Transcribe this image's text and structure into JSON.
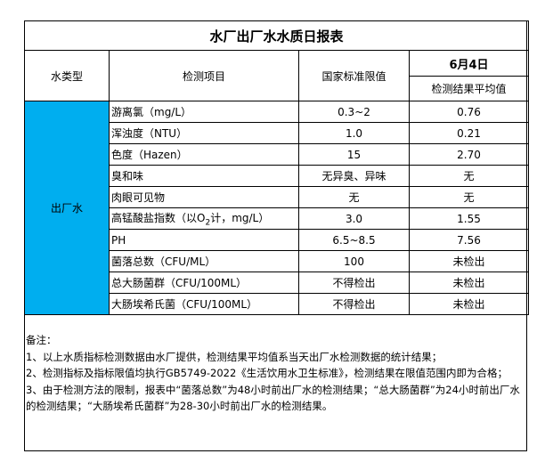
{
  "title": "水厂出厂水水质日报表",
  "headers": {
    "water_type": "水类型",
    "item": "检测项目",
    "standard": "国家标准限值",
    "date": "6月4日",
    "result": "检测结果平均值"
  },
  "water_type_value": "出厂水",
  "rows": [
    {
      "item": "游离氯（mg/L）",
      "standard": "0.3~2",
      "result": "0.76"
    },
    {
      "item": "浑浊度（NTU）",
      "standard": "1.0",
      "result": "0.21"
    },
    {
      "item": "色度（Hazen）",
      "standard": "15",
      "result": "2.70"
    },
    {
      "item": "臭和味",
      "standard": "无异臭、异味",
      "result": "无"
    },
    {
      "item": "肉眼可见物",
      "standard": "无",
      "result": "无"
    },
    {
      "item_pre": "高锰酸盐指数（以O",
      "item_sub": "2",
      "item_post": "计，mg/L）",
      "standard": "3.0",
      "result": "1.55"
    },
    {
      "item": "PH",
      "standard": "6.5~8.5",
      "result": "7.56"
    },
    {
      "item": "菌落总数（CFU/ML）",
      "standard": "100",
      "result": "未检出"
    },
    {
      "item": "总大肠菌群（CFU/100ML）",
      "standard": "不得检出",
      "result": "未检出"
    },
    {
      "item": "大肠埃希氏菌（CFU/100ML）",
      "standard": "不得检出",
      "result": "未检出"
    }
  ],
  "notes": {
    "heading": "备注：",
    "n1": "1、以上水质指标检测数据由水厂提供，检测结果平均值系当天出厂水检测数据的统计结果；",
    "n2": "2、检测指标及指标限值均执行GB5749-2022《生活饮用水卫生标准》，检测结果在限值范围内即为合格；",
    "n3": "3、由于检测方法的限制，报表中“菌落总数”为48小时前出厂水的检测结果；“总大肠菌群”为24小时前出厂水的检测结果；“大肠埃希氏菌群”为28-30小时前出厂水的检测结果。"
  },
  "colors": {
    "water_type_bg": "#00AEEF"
  }
}
